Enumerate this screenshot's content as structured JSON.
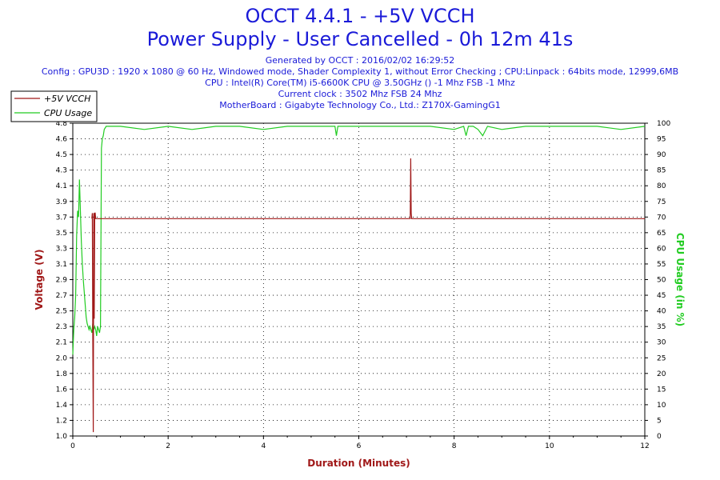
{
  "header": {
    "title_line1": "OCCT 4.4.1 - +5V VCCH",
    "title_line2": "Power Supply - User Cancelled - 0h 12m 41s",
    "generated": "Generated by OCCT : 2016/02/02 16:29:52",
    "config": "Config : GPU3D : 1920 x 1080 @ 60 Hz, Windowed mode, Shader Complexity 1, without Error Checking ; CPU:Linpack : 64bits mode, 12999,6MB",
    "cpu": "CPU : Intel(R) Core(TM) i5-6600K CPU @ 3.50GHz () -1 Mhz FSB -1 Mhz",
    "clock": "Current clock : 3502 Mhz FSB 24 Mhz",
    "motherboard": "MotherBoard : Gigabyte Technology Co., Ltd.: Z170X-GamingG1"
  },
  "colors": {
    "voltage": "#a01818",
    "cpu_usage": "#22cc22",
    "title": "#1a1ad8"
  },
  "chart_data": {
    "type": "line",
    "xlabel": "Duration (Minutes)",
    "ylabel": "Voltage (V)",
    "y2label": "CPU Usage (in %)",
    "xlim": [
      0,
      12
    ],
    "ylim": [
      1.0,
      5.0
    ],
    "y2lim": [
      0,
      100
    ],
    "x_ticks": [
      "0",
      "2",
      "4",
      "6",
      "8",
      "10",
      "12"
    ],
    "y_ticks": [
      "1.0",
      "1.2",
      "1.4",
      "1.6",
      "1.8",
      "2.0",
      "2.1",
      "2.3",
      "2.5",
      "2.7",
      "2.9",
      "3.1",
      "3.3",
      "3.5",
      "3.7",
      "3.9",
      "4.1",
      "4.3",
      "4.5",
      "4.6",
      "4.8"
    ],
    "y2_ticks": [
      "0",
      "5",
      "10",
      "15",
      "20",
      "25",
      "30",
      "35",
      "40",
      "45",
      "50",
      "55",
      "60",
      "65",
      "70",
      "75",
      "80",
      "85",
      "90",
      "95",
      "100"
    ],
    "grid": true,
    "legend_position": "top-left",
    "series": [
      {
        "name": "+5V VCCH",
        "axis": "left",
        "x": [
          0.4,
          0.41,
          0.42,
          0.43,
          0.44,
          0.45,
          0.46,
          0.47,
          0.48,
          0.5,
          1,
          2,
          3,
          4,
          5,
          6,
          7,
          7.08,
          7.09,
          7.1,
          7.11,
          7.12,
          7.13,
          8,
          9,
          10,
          11,
          12
        ],
        "values": [
          3.78,
          3.85,
          2.2,
          1.05,
          3.85,
          2.5,
          3.85,
          3.85,
          3.78,
          3.78,
          3.78,
          3.78,
          3.78,
          3.78,
          3.78,
          3.78,
          3.78,
          3.78,
          4.55,
          3.85,
          3.78,
          3.78,
          3.78,
          3.78,
          3.78,
          3.78,
          3.78,
          3.78
        ]
      },
      {
        "name": "CPU Usage",
        "axis": "right",
        "x": [
          0.0,
          0.02,
          0.04,
          0.06,
          0.08,
          0.1,
          0.12,
          0.14,
          0.16,
          0.18,
          0.2,
          0.22,
          0.24,
          0.26,
          0.28,
          0.3,
          0.32,
          0.34,
          0.36,
          0.38,
          0.4,
          0.42,
          0.44,
          0.46,
          0.48,
          0.5,
          0.52,
          0.54,
          0.56,
          0.58,
          0.6,
          0.62,
          0.64,
          0.66,
          0.7,
          0.8,
          1.0,
          1.5,
          2.0,
          2.5,
          3.0,
          3.5,
          4.0,
          4.5,
          5.0,
          5.5,
          5.53,
          5.56,
          6.0,
          6.5,
          7.0,
          7.5,
          8.0,
          8.2,
          8.25,
          8.3,
          8.4,
          8.5,
          8.6,
          8.7,
          9.0,
          9.5,
          10.0,
          10.5,
          11.0,
          11.5,
          12.0
        ],
        "values": [
          26,
          34,
          38,
          45,
          64,
          72,
          70,
          82,
          72,
          62,
          55,
          50,
          46,
          42,
          38,
          36,
          35,
          34,
          35,
          34,
          33,
          36,
          34,
          35,
          34,
          32,
          35,
          34,
          33,
          35,
          92,
          95,
          96,
          98,
          99,
          99,
          99,
          98,
          99,
          98,
          99,
          99,
          98,
          99,
          99,
          99,
          96,
          99,
          99,
          99,
          99,
          99,
          98,
          99,
          96,
          99,
          99,
          98,
          96,
          99,
          98,
          99,
          99,
          99,
          99,
          98,
          99
        ]
      }
    ]
  }
}
